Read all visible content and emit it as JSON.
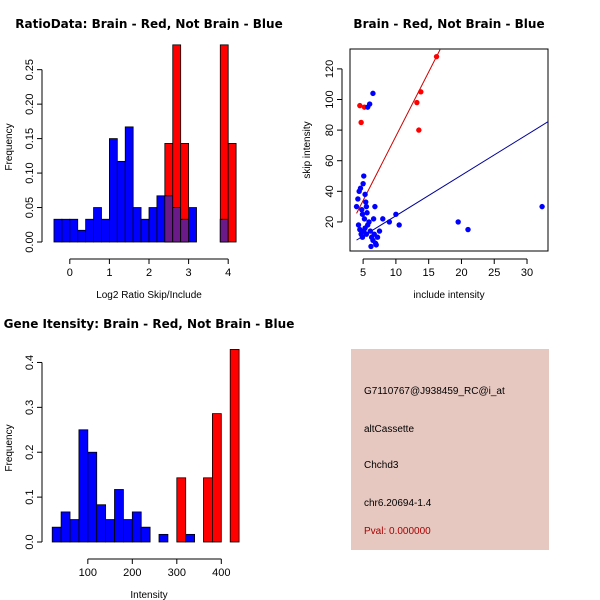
{
  "colors": {
    "red": "#ff0000",
    "blue": "#0000ff",
    "overlap": "#6b1a8a",
    "panel_bg": "#e6c8c0",
    "pval": "#aa0000",
    "red_line": "#cc0000",
    "blue_line": "#000099"
  },
  "chart_data": [
    {
      "id": "ratio",
      "type": "bar",
      "title": "RatioData: Brain - Red, Not Brain - Blue",
      "xlabel": "Log2 Ratio Skip/Include",
      "ylabel": "Frequency",
      "xlim": [
        -0.5,
        4.5
      ],
      "ylim": [
        0,
        0.28
      ],
      "xticks": [
        0,
        1,
        2,
        3,
        4
      ],
      "yticks": [
        0.0,
        0.05,
        0.1,
        0.15,
        0.2,
        0.25
      ],
      "ytick_labels": [
        "0.00",
        "0.05",
        "0.10",
        "0.15",
        "0.20",
        "0.25"
      ],
      "series": [
        {
          "name": "Not Brain",
          "color": "blue",
          "bins": [
            {
              "x0": -0.4,
              "x1": -0.2,
              "value": 0.033
            },
            {
              "x0": -0.2,
              "x1": 0.0,
              "value": 0.033
            },
            {
              "x0": 0.0,
              "x1": 0.2,
              "value": 0.033
            },
            {
              "x0": 0.2,
              "x1": 0.4,
              "value": 0.017
            },
            {
              "x0": 0.4,
              "x1": 0.6,
              "value": 0.033
            },
            {
              "x0": 0.6,
              "x1": 0.8,
              "value": 0.05
            },
            {
              "x0": 0.8,
              "x1": 1.0,
              "value": 0.033
            },
            {
              "x0": 1.0,
              "x1": 1.2,
              "value": 0.15
            },
            {
              "x0": 1.2,
              "x1": 1.4,
              "value": 0.117
            },
            {
              "x0": 1.4,
              "x1": 1.6,
              "value": 0.167
            },
            {
              "x0": 1.6,
              "x1": 1.8,
              "value": 0.05
            },
            {
              "x0": 1.8,
              "x1": 2.0,
              "value": 0.033
            },
            {
              "x0": 2.0,
              "x1": 2.2,
              "value": 0.05
            },
            {
              "x0": 2.2,
              "x1": 2.4,
              "value": 0.067
            },
            {
              "x0": 2.4,
              "x1": 2.6,
              "value": 0.067
            },
            {
              "x0": 2.6,
              "x1": 2.8,
              "value": 0.05
            },
            {
              "x0": 2.8,
              "x1": 3.0,
              "value": 0.033
            },
            {
              "x0": 3.0,
              "x1": 3.2,
              "value": 0.05
            },
            {
              "x0": 3.8,
              "x1": 4.0,
              "value": 0.033
            }
          ]
        },
        {
          "name": "Brain",
          "color": "red",
          "bins": [
            {
              "x0": 2.4,
              "x1": 2.6,
              "value": 0.143
            },
            {
              "x0": 2.6,
              "x1": 2.8,
              "value": 0.286
            },
            {
              "x0": 2.8,
              "x1": 3.0,
              "value": 0.143
            },
            {
              "x0": 3.8,
              "x1": 4.0,
              "value": 0.286
            },
            {
              "x0": 4.0,
              "x1": 4.2,
              "value": 0.143
            }
          ]
        }
      ]
    },
    {
      "id": "scatter",
      "type": "scatter",
      "title": "Brain - Red, Not Brain - Blue",
      "xlabel": "include intensity",
      "ylabel": "skip intensity",
      "xlim": [
        3.0,
        33.2
      ],
      "ylim": [
        1.0,
        133.0
      ],
      "xticks": [
        5,
        10,
        15,
        20,
        25,
        30
      ],
      "yticks": [
        20,
        40,
        60,
        80,
        100,
        120
      ],
      "series": [
        {
          "name": "Brain",
          "color": "red",
          "points": [
            [
              4.5,
              96
            ],
            [
              4.7,
              85
            ],
            [
              5.2,
              95
            ],
            [
              13.2,
              98
            ],
            [
              13.5,
              80
            ],
            [
              13.8,
              105
            ],
            [
              16.2,
              128
            ]
          ]
        },
        {
          "name": "Not Brain",
          "color": "blue",
          "points": [
            [
              4.0,
              30
            ],
            [
              4.2,
              35
            ],
            [
              4.4,
              40
            ],
            [
              4.6,
              42
            ],
            [
              4.8,
              28
            ],
            [
              4.9,
              25
            ],
            [
              5.0,
              45
            ],
            [
              5.1,
              50
            ],
            [
              5.2,
              22
            ],
            [
              5.3,
              38
            ],
            [
              5.4,
              33
            ],
            [
              5.5,
              30
            ],
            [
              5.7,
              95
            ],
            [
              6.0,
              97
            ],
            [
              6.5,
              104
            ],
            [
              6.8,
              30
            ],
            [
              4.3,
              18
            ],
            [
              4.5,
              15
            ],
            [
              4.7,
              12
            ],
            [
              4.9,
              10
            ],
            [
              5.1,
              14
            ],
            [
              5.3,
              16
            ],
            [
              5.5,
              12
            ],
            [
              5.7,
              18
            ],
            [
              5.9,
              20
            ],
            [
              6.1,
              14
            ],
            [
              6.3,
              10
            ],
            [
              6.5,
              8
            ],
            [
              6.7,
              12
            ],
            [
              6.9,
              6
            ],
            [
              7.2,
              10
            ],
            [
              7.5,
              14
            ],
            [
              8.0,
              22
            ],
            [
              9.0,
              20
            ],
            [
              10.0,
              25
            ],
            [
              10.5,
              18
            ],
            [
              7.0,
              5
            ],
            [
              6.2,
              4
            ],
            [
              5.6,
              26
            ],
            [
              6.6,
              22
            ],
            [
              19.5,
              20
            ],
            [
              21.0,
              15
            ],
            [
              32.3,
              30
            ]
          ]
        }
      ],
      "fit_lines": [
        {
          "name": "Brain fit",
          "color": "red_line",
          "slope": 8.4,
          "intercept": -8.0
        },
        {
          "name": "Not Brain fit",
          "color": "blue_line",
          "slope": 2.65,
          "intercept": -2.5
        }
      ]
    },
    {
      "id": "intensity",
      "type": "bar",
      "title": "Gene Itensity: Brain - Red, Not Brain - Blue",
      "xlabel": "Intensity",
      "ylabel": "Frequency",
      "xlim": [
        15,
        460
      ],
      "ylim": [
        0,
        0.43
      ],
      "xticks": [
        100,
        200,
        300,
        400
      ],
      "yticks": [
        0.0,
        0.1,
        0.2,
        0.3,
        0.4
      ],
      "ytick_labels": [
        "0.0",
        "0.1",
        "0.2",
        "0.3",
        "0.4"
      ],
      "series": [
        {
          "name": "Not Brain",
          "color": "blue",
          "bins": [
            {
              "x0": 20,
              "x1": 40,
              "value": 0.033
            },
            {
              "x0": 40,
              "x1": 60,
              "value": 0.067
            },
            {
              "x0": 60,
              "x1": 80,
              "value": 0.05
            },
            {
              "x0": 80,
              "x1": 100,
              "value": 0.25
            },
            {
              "x0": 100,
              "x1": 120,
              "value": 0.2
            },
            {
              "x0": 120,
              "x1": 140,
              "value": 0.083
            },
            {
              "x0": 140,
              "x1": 160,
              "value": 0.05
            },
            {
              "x0": 160,
              "x1": 180,
              "value": 0.117
            },
            {
              "x0": 180,
              "x1": 200,
              "value": 0.05
            },
            {
              "x0": 200,
              "x1": 220,
              "value": 0.067
            },
            {
              "x0": 220,
              "x1": 240,
              "value": 0.033
            },
            {
              "x0": 260,
              "x1": 280,
              "value": 0.017
            },
            {
              "x0": 320,
              "x1": 340,
              "value": 0.017
            }
          ]
        },
        {
          "name": "Brain",
          "color": "red",
          "bins": [
            {
              "x0": 300,
              "x1": 320,
              "value": 0.143
            },
            {
              "x0": 360,
              "x1": 380,
              "value": 0.143
            },
            {
              "x0": 380,
              "x1": 400,
              "value": 0.286
            },
            {
              "x0": 420,
              "x1": 440,
              "value": 0.429
            }
          ]
        }
      ]
    }
  ],
  "info": {
    "probe_id": "G7110767@J938459_RC@i_at",
    "event_type": "altCassette",
    "gene": "Chchd3",
    "location": "chr6.20694-1.4",
    "pval": "Pval: 0.000000"
  }
}
